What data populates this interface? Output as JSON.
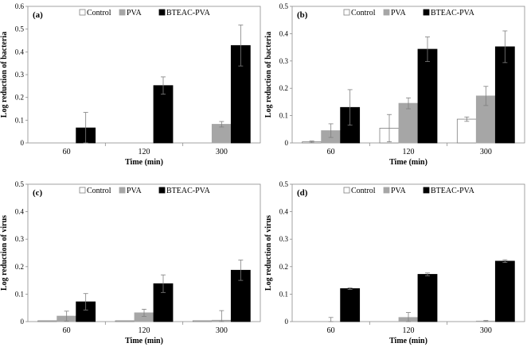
{
  "chart_data": [
    {
      "type": "bar",
      "panel": "(a)",
      "categories": [
        "60",
        "120",
        "300"
      ],
      "series": [
        {
          "name": "Control",
          "color": "#ffffff",
          "values": [
            0.0,
            0.0,
            0.0
          ],
          "errors": [
            0.0,
            0.0,
            0.0
          ]
        },
        {
          "name": "PVA",
          "color": "#a6a6a6",
          "values": [
            0.0,
            0.0,
            0.082
          ],
          "errors": [
            0.0,
            0.0,
            0.012
          ]
        },
        {
          "name": "BTEAC-PVA",
          "color": "#000000",
          "values": [
            0.066,
            0.252,
            0.428
          ],
          "errors": [
            0.068,
            0.038,
            0.09
          ]
        }
      ],
      "xlabel": "Time (min)",
      "ylabel": "Log reduction of bacteria",
      "ylim": [
        0,
        0.6
      ],
      "yticks": [
        "0",
        "0.1",
        "0.2",
        "0.3",
        "0.4",
        "0.5",
        "0.6"
      ]
    },
    {
      "type": "bar",
      "panel": "(b)",
      "categories": [
        "60",
        "120",
        "300"
      ],
      "series": [
        {
          "name": "Control",
          "color": "#ffffff",
          "values": [
            0.004,
            0.054,
            0.087
          ],
          "errors": [
            0.003,
            0.05,
            0.008
          ]
        },
        {
          "name": "PVA",
          "color": "#a6a6a6",
          "values": [
            0.045,
            0.145,
            0.172
          ],
          "errors": [
            0.025,
            0.02,
            0.035
          ]
        },
        {
          "name": "BTEAC-PVA",
          "color": "#000000",
          "values": [
            0.13,
            0.343,
            0.352
          ],
          "errors": [
            0.065,
            0.045,
            0.058
          ]
        }
      ],
      "xlabel": "Time (min)",
      "ylabel": "Log reduction of bacteria",
      "ylim": [
        0,
        0.5
      ],
      "yticks": [
        "0",
        "0.1",
        "0.2",
        "0.3",
        "0.4",
        "0.5"
      ]
    },
    {
      "type": "bar",
      "panel": "(c)",
      "categories": [
        "60",
        "120",
        "300"
      ],
      "series": [
        {
          "name": "Control",
          "color": "#ffffff",
          "values": [
            0.003,
            0.003,
            0.003
          ],
          "errors": [
            0.0,
            0.0,
            0.0
          ]
        },
        {
          "name": "PVA",
          "color": "#a6a6a6",
          "values": [
            0.02,
            0.032,
            0.005
          ],
          "errors": [
            0.018,
            0.013,
            0.035
          ]
        },
        {
          "name": "BTEAC-PVA",
          "color": "#000000",
          "values": [
            0.072,
            0.138,
            0.187
          ],
          "errors": [
            0.03,
            0.032,
            0.037
          ]
        }
      ],
      "xlabel": "Time (min)",
      "ylabel": "Log reduction of virus",
      "ylim": [
        0,
        0.5
      ],
      "yticks": [
        "0",
        "0.1",
        "0.2",
        "0.3",
        "0.4",
        "0.5"
      ]
    },
    {
      "type": "bar",
      "panel": "(d)",
      "categories": [
        "60",
        "120",
        "300"
      ],
      "series": [
        {
          "name": "Control",
          "color": "#ffffff",
          "values": [
            0.0,
            0.0,
            0.0
          ],
          "errors": [
            0.0,
            0.0,
            0.0
          ]
        },
        {
          "name": "PVA",
          "color": "#a6a6a6",
          "values": [
            0.0,
            0.015,
            0.002
          ],
          "errors": [
            0.015,
            0.018,
            0.002
          ]
        },
        {
          "name": "BTEAC-PVA",
          "color": "#000000",
          "values": [
            0.12,
            0.172,
            0.22
          ],
          "errors": [
            0.003,
            0.005,
            0.005
          ]
        }
      ],
      "xlabel": "Time (min)",
      "ylabel": "Log reduction of virus",
      "ylim": [
        0,
        0.5
      ],
      "yticks": [
        "0",
        "0.1",
        "0.2",
        "0.3",
        "0.4",
        "0.5"
      ]
    }
  ]
}
